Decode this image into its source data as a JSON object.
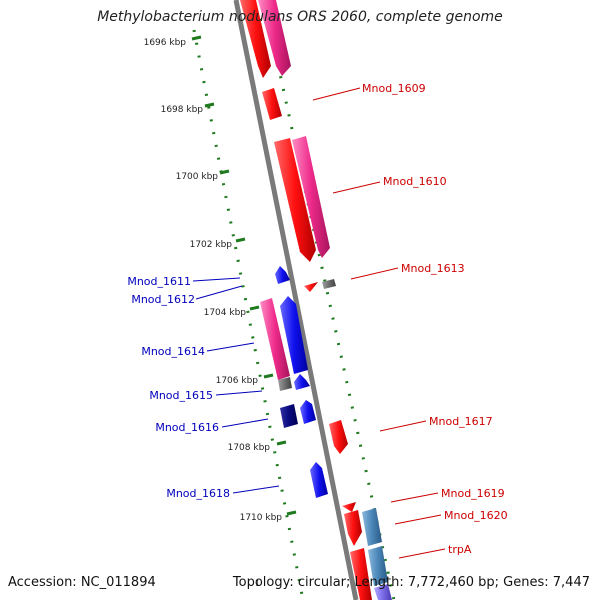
{
  "title": "Methylobacterium nodulans ORS 2060, complete genome",
  "footer": {
    "accession": "Accession: NC_011894",
    "summary": "Topology: circular; Length: 7,772,460 bp; Genes: 7,447",
    "mark": "1"
  },
  "colors": {
    "backbone": "#7a7a7a",
    "tick": "#1f7a1f",
    "forward_red": "#ff1010",
    "forward_pink": "#ee2a8a",
    "reverse_blue": "#1010ee",
    "reverse_navy": "#0a0a80",
    "steel_blue": "#4a86b8",
    "gray_gene": "#6e6e6e",
    "label_red": "#cc0000",
    "label_blue": "#0000bb"
  },
  "kbp_labels": [
    "1696 kbp",
    "1698 kbp",
    "1700 kbp",
    "1702 kbp",
    "1704 kbp",
    "1706 kbp",
    "1708 kbp",
    "1710 kbp"
  ],
  "gene_labels": {
    "right": [
      "Mnod_1609",
      "Mnod_1610",
      "Mnod_1613",
      "Mnod_1617",
      "Mnod_1619",
      "Mnod_1620",
      "trpA"
    ],
    "left": [
      "Mnod_1611",
      "Mnod_1612",
      "Mnod_1614",
      "Mnod_1615",
      "Mnod_1616",
      "Mnod_1618"
    ]
  }
}
